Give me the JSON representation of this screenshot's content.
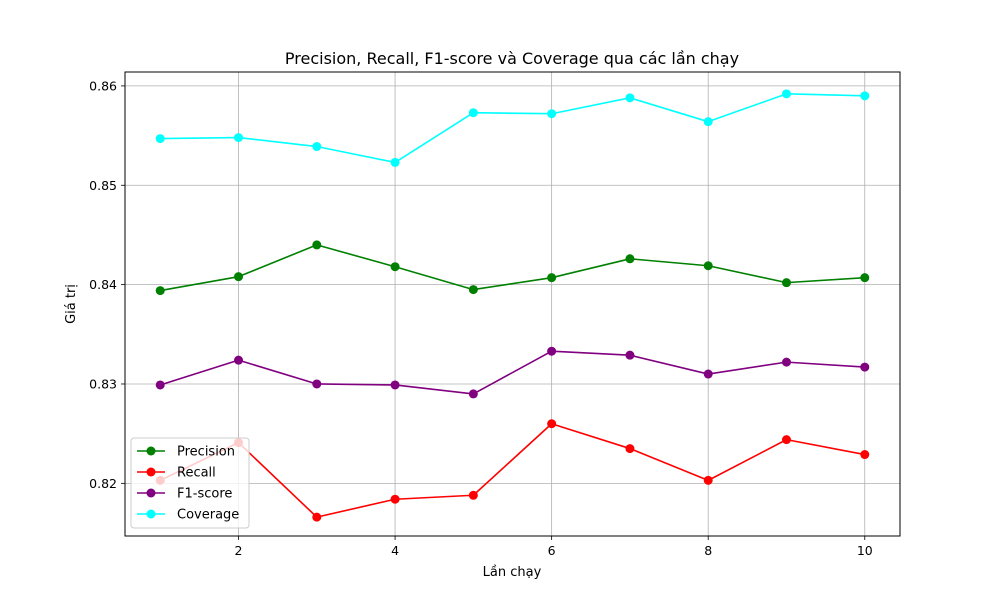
{
  "chart_data": {
    "type": "line",
    "title": "Precision, Recall, F1-score và Coverage qua các lần chạy",
    "xlabel": "Lần chạy",
    "ylabel": "Giá trị",
    "x": [
      1,
      2,
      3,
      4,
      5,
      6,
      7,
      8,
      9,
      10
    ],
    "xlim": [
      0.55,
      10.45
    ],
    "ylim": [
      0.8147,
      0.8614
    ],
    "xticks": [
      2,
      4,
      6,
      8,
      10
    ],
    "yticks": [
      0.82,
      0.83,
      0.84,
      0.85,
      0.86
    ],
    "xtick_labels": [
      "2",
      "4",
      "6",
      "8",
      "10"
    ],
    "ytick_labels": [
      "0.82",
      "0.83",
      "0.84",
      "0.85",
      "0.86"
    ],
    "grid": true,
    "legend_position": "lower-left",
    "series": [
      {
        "name": "Precision",
        "color": "#008000",
        "marker": "circle",
        "values": [
          0.8394,
          0.8408,
          0.844,
          0.8418,
          0.8395,
          0.8407,
          0.8426,
          0.8419,
          0.8402,
          0.8407
        ]
      },
      {
        "name": "Recall",
        "color": "#ff0000",
        "marker": "circle",
        "values": [
          0.8203,
          0.8241,
          0.8166,
          0.8184,
          0.8188,
          0.826,
          0.8235,
          0.8203,
          0.8244,
          0.8229
        ]
      },
      {
        "name": "F1-score",
        "color": "#800080",
        "marker": "circle",
        "values": [
          0.8299,
          0.8324,
          0.83,
          0.8299,
          0.829,
          0.8333,
          0.8329,
          0.831,
          0.8322,
          0.8317
        ]
      },
      {
        "name": "Coverage",
        "color": "#00ffff",
        "marker": "circle",
        "values": [
          0.8547,
          0.8548,
          0.8539,
          0.8523,
          0.8573,
          0.8572,
          0.8588,
          0.8564,
          0.8592,
          0.859
        ]
      }
    ]
  }
}
